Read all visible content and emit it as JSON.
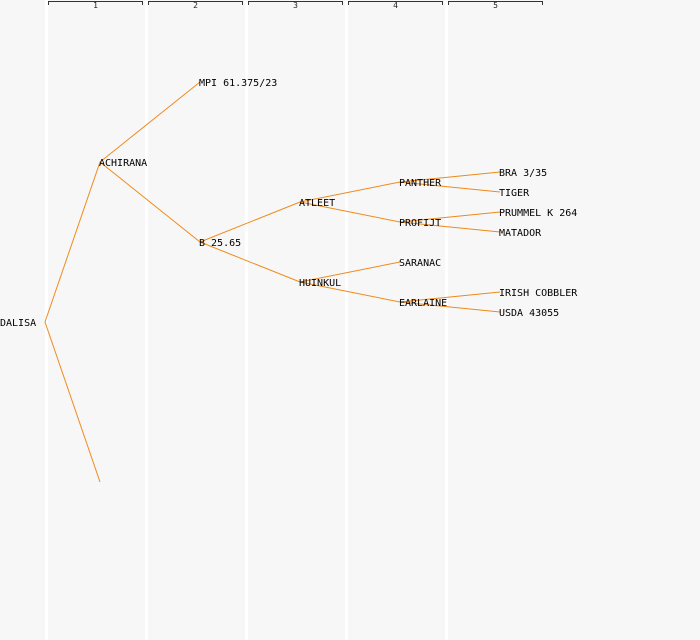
{
  "generations": [
    "1",
    "2",
    "3",
    "4",
    "5"
  ],
  "colors": {
    "line": "#f08a1c",
    "text": "#000000",
    "column_bg": "#f7f7f7",
    "separator": "#ffffff"
  },
  "pedigree": {
    "root": {
      "label": "DALISA",
      "female": {
        "label": "ACHIRANA",
        "female": {
          "label": "MPI 61.375/23"
        },
        "male": {
          "label": "B 25.65",
          "female": {
            "label": "ATLEET",
            "female": {
              "label": "PANTHER",
              "female": {
                "label": "BRA 3/35"
              },
              "male": {
                "label": "TIGER"
              }
            },
            "male": {
              "label": "PROFIJT",
              "female": {
                "label": "PRUMMEL K 264"
              },
              "male": {
                "label": "MATADOR"
              }
            }
          },
          "male": {
            "label": "HUINKUL",
            "female": {
              "label": "SARANAC"
            },
            "male": {
              "label": "EARLAINE",
              "female": {
                "label": "IRISH COBBLER"
              },
              "male": {
                "label": "USDA 43055"
              }
            }
          }
        }
      },
      "male": {
        "label": ""
      }
    }
  }
}
